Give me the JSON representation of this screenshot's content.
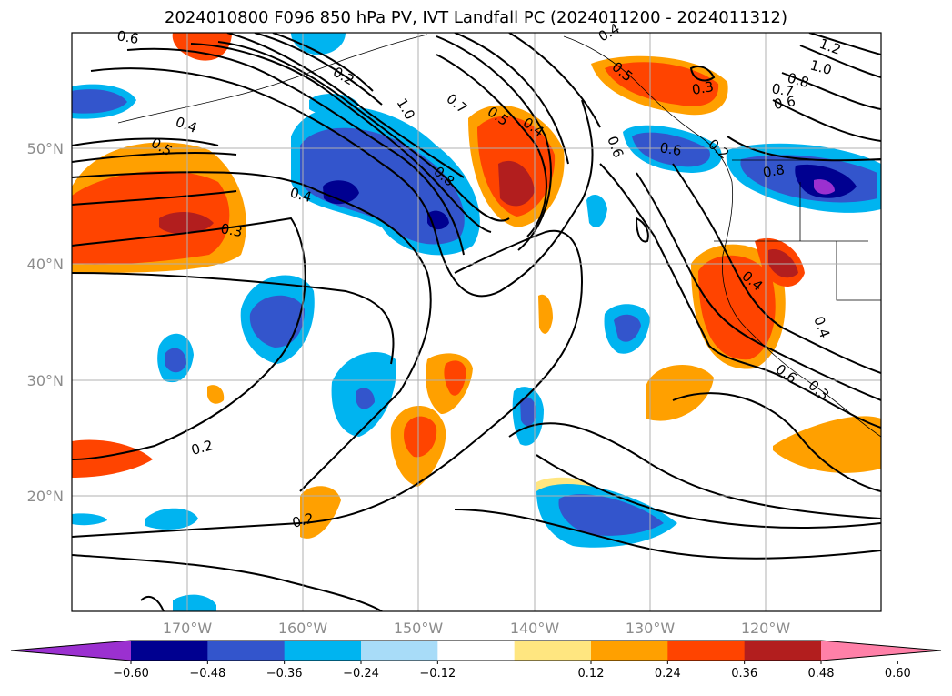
{
  "title": "2024010800 F096 850 hPa PV, IVT Landfall PC (2024011200 - 2024011312)",
  "map": {
    "projection": "PlateCarree",
    "lon_range": [
      -180,
      -110
    ],
    "lat_range": [
      10,
      60
    ],
    "gridlines": true,
    "coastlines": true,
    "lat_labels": [
      "50°N",
      "40°N",
      "30°N",
      "20°N"
    ],
    "lon_labels": [
      "170°W",
      "160°W",
      "150°W",
      "140°W",
      "130°W",
      "120°W"
    ]
  },
  "filled_field": "IVT Landfall PC",
  "contour_field": "850 hPa PV",
  "contour_labels": [
    "0.6",
    "0.4",
    "0.5",
    "0.3",
    "0.2",
    "0.2",
    "0.4",
    "0.8",
    "1.0",
    "0.7",
    "0.5",
    "0.4",
    "0.2",
    "1.2",
    "1.0",
    "0.8",
    "0.7",
    "0.6",
    "0.3",
    "0.5",
    "0.4",
    "0.6",
    "0.2",
    "0.8",
    "0.6",
    "0.3",
    "0.4",
    "0.4",
    "0.6"
  ],
  "colorbar": {
    "orientation": "horizontal",
    "extend": "both",
    "levels": [
      -0.6,
      -0.48,
      -0.36,
      -0.24,
      -0.12,
      0.12,
      0.24,
      0.36,
      0.48,
      0.6
    ],
    "tick_labels": [
      "−0.60",
      "−0.48",
      "−0.36",
      "−0.24",
      "−0.12",
      "0.12",
      "0.24",
      "0.36",
      "0.48",
      "0.60"
    ],
    "colors": [
      "#9b30d0",
      "#000090",
      "#3355cc",
      "#00b4f0",
      "#a8dcf8",
      "#ffffff",
      "#ffe680",
      "#ffa000",
      "#ff4400",
      "#b21e1e",
      "#ff80a8"
    ]
  }
}
